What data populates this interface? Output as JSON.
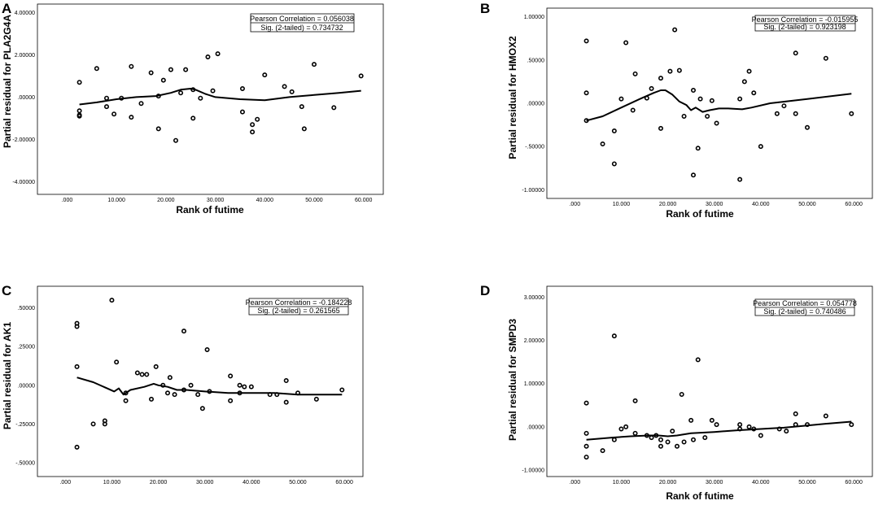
{
  "figure": {
    "x_ticks": [
      ".000",
      "10.000",
      "20.000",
      "30.000",
      "40.000",
      "50.000",
      "60.000"
    ]
  },
  "chart_data": [
    {
      "type": "scatter",
      "panel": "A",
      "xlabel": "Rank of futime",
      "ylabel": "Partial residual for PLA2G4A",
      "xlim": [
        -6,
        64
      ],
      "ylim": [
        -4.6,
        4.4
      ],
      "y_ticks": [
        4,
        2,
        0,
        -2,
        -4
      ],
      "y_tick_labels": [
        "4.00000",
        "2.00000",
        ".00000",
        "-2.00000",
        "-4.00000"
      ],
      "stats": [
        "Pearson Correlation = 0.056038",
        "Sig. (2-tailed) = 0.734732"
      ],
      "points": [
        [
          2.5,
          0.7
        ],
        [
          2.5,
          -0.65
        ],
        [
          2.5,
          -0.85
        ],
        [
          2.5,
          -0.9
        ],
        [
          6,
          1.35
        ],
        [
          8,
          -0.05
        ],
        [
          8,
          -0.45
        ],
        [
          9.5,
          -0.8
        ],
        [
          11,
          -0.05
        ],
        [
          13,
          1.45
        ],
        [
          13,
          -0.95
        ],
        [
          15,
          -0.3
        ],
        [
          17,
          1.15
        ],
        [
          18.5,
          0.05
        ],
        [
          18.5,
          -1.5
        ],
        [
          19.5,
          0.8
        ],
        [
          21,
          1.3
        ],
        [
          22,
          -2.05
        ],
        [
          23,
          0.2
        ],
        [
          24,
          1.3
        ],
        [
          25.5,
          0.35
        ],
        [
          25.5,
          -1.0
        ],
        [
          27,
          -0.05
        ],
        [
          28.5,
          1.9
        ],
        [
          29.5,
          0.3
        ],
        [
          30.5,
          2.05
        ],
        [
          35.5,
          0.4
        ],
        [
          35.5,
          -0.7
        ],
        [
          37.5,
          -1.3
        ],
        [
          37.5,
          -1.65
        ],
        [
          38.5,
          -1.05
        ],
        [
          40,
          1.05
        ],
        [
          44,
          0.5
        ],
        [
          45.5,
          0.25
        ],
        [
          47.5,
          -0.45
        ],
        [
          48,
          -1.5
        ],
        [
          50,
          1.55
        ],
        [
          54,
          -0.5
        ],
        [
          59.5,
          1.0
        ]
      ],
      "fit": [
        [
          2.5,
          -0.35
        ],
        [
          6,
          -0.25
        ],
        [
          10,
          -0.1
        ],
        [
          14,
          0.0
        ],
        [
          18,
          0.05
        ],
        [
          21,
          0.2
        ],
        [
          23,
          0.35
        ],
        [
          25,
          0.4
        ],
        [
          26,
          0.35
        ],
        [
          28,
          0.15
        ],
        [
          30,
          0.0
        ],
        [
          35,
          -0.1
        ],
        [
          40,
          -0.15
        ],
        [
          45,
          0.0
        ],
        [
          50,
          0.1
        ],
        [
          55,
          0.2
        ],
        [
          59.5,
          0.3
        ]
      ]
    },
    {
      "type": "scatter",
      "panel": "B",
      "xlabel": "Rank of futime",
      "ylabel": "Partial residual for HMOX2",
      "xlim": [
        -6,
        64
      ],
      "ylim": [
        -1.1,
        1.1
      ],
      "y_ticks": [
        1,
        0.5,
        0,
        -0.5,
        -1
      ],
      "y_tick_labels": [
        "1.00000",
        ".50000",
        ".00000",
        "-.50000",
        "-1.00000"
      ],
      "stats": [
        "Pearson Correlation = -0.015955",
        "Sig. (2-tailed) = 0.923198"
      ],
      "points": [
        [
          2.5,
          0.72
        ],
        [
          2.5,
          0.12
        ],
        [
          2.5,
          -0.2
        ],
        [
          6,
          -0.47
        ],
        [
          8.5,
          -0.7
        ],
        [
          8.5,
          -0.32
        ],
        [
          10,
          0.05
        ],
        [
          11,
          0.7
        ],
        [
          12.5,
          -0.08
        ],
        [
          13,
          0.34
        ],
        [
          15.5,
          0.06
        ],
        [
          16.5,
          0.17
        ],
        [
          18.5,
          0.29
        ],
        [
          18.5,
          -0.29
        ],
        [
          20.5,
          0.37
        ],
        [
          21.5,
          0.85
        ],
        [
          22.5,
          0.38
        ],
        [
          23.5,
          -0.15
        ],
        [
          25.5,
          0.15
        ],
        [
          25.5,
          -0.83
        ],
        [
          26.5,
          -0.52
        ],
        [
          27,
          0.05
        ],
        [
          28.5,
          -0.15
        ],
        [
          29.5,
          0.03
        ],
        [
          30.5,
          -0.23
        ],
        [
          35.5,
          0.05
        ],
        [
          35.5,
          -0.88
        ],
        [
          36.5,
          0.25
        ],
        [
          37.5,
          0.37
        ],
        [
          38.5,
          0.12
        ],
        [
          40,
          -0.5
        ],
        [
          43.5,
          -0.12
        ],
        [
          45,
          -0.03
        ],
        [
          47.5,
          0.58
        ],
        [
          47.5,
          -0.12
        ],
        [
          50,
          -0.28
        ],
        [
          54,
          0.52
        ],
        [
          59.5,
          -0.12
        ]
      ],
      "fit": [
        [
          2.5,
          -0.2
        ],
        [
          6,
          -0.15
        ],
        [
          10,
          -0.05
        ],
        [
          14,
          0.05
        ],
        [
          17,
          0.12
        ],
        [
          18.5,
          0.15
        ],
        [
          19.5,
          0.15
        ],
        [
          21,
          0.1
        ],
        [
          22.5,
          0.02
        ],
        [
          24,
          -0.02
        ],
        [
          25,
          -0.08
        ],
        [
          26,
          -0.05
        ],
        [
          27.5,
          -0.1
        ],
        [
          29,
          -0.08
        ],
        [
          31,
          -0.06
        ],
        [
          33,
          -0.06
        ],
        [
          36,
          -0.07
        ],
        [
          38,
          -0.05
        ],
        [
          42,
          0.0
        ],
        [
          50,
          0.05
        ],
        [
          59.5,
          0.11
        ]
      ]
    },
    {
      "type": "scatter",
      "panel": "C",
      "xlabel": "",
      "ylabel": "Partial residual for AK1",
      "xlim": [
        -6,
        64
      ],
      "ylim": [
        -0.59,
        0.64
      ],
      "y_ticks": [
        0.5,
        0.25,
        0,
        -0.25,
        -0.5
      ],
      "y_tick_labels": [
        ".50000",
        ".25000",
        ".00000",
        "-.25000",
        "-.50000"
      ],
      "stats": [
        "Pearson Correlation = -0.184228",
        "Sig. (2-tailed) = 0.261565"
      ],
      "points": [
        [
          2.5,
          0.4
        ],
        [
          2.5,
          0.38
        ],
        [
          2.5,
          0.12
        ],
        [
          2.5,
          -0.4
        ],
        [
          6,
          -0.25
        ],
        [
          8.5,
          -0.23
        ],
        [
          8.5,
          -0.25
        ],
        [
          10,
          0.55
        ],
        [
          11,
          0.15
        ],
        [
          13,
          -0.1
        ],
        [
          13,
          -0.05
        ],
        [
          15.5,
          0.08
        ],
        [
          16.5,
          0.07
        ],
        [
          17.5,
          0.07
        ],
        [
          18.5,
          -0.09
        ],
        [
          19.5,
          0.12
        ],
        [
          21,
          0.0
        ],
        [
          22,
          -0.05
        ],
        [
          22.5,
          0.05
        ],
        [
          23.5,
          -0.06
        ],
        [
          25.5,
          0.35
        ],
        [
          25.5,
          -0.03
        ],
        [
          27,
          0.0
        ],
        [
          28.5,
          -0.06
        ],
        [
          29.5,
          -0.15
        ],
        [
          30.5,
          0.23
        ],
        [
          31,
          -0.04
        ],
        [
          35.5,
          0.06
        ],
        [
          35.5,
          -0.1
        ],
        [
          37.5,
          -0.05
        ],
        [
          37.5,
          0.0
        ],
        [
          38.5,
          -0.01
        ],
        [
          40,
          -0.01
        ],
        [
          44,
          -0.06
        ],
        [
          45.5,
          -0.06
        ],
        [
          47.5,
          0.03
        ],
        [
          47.5,
          -0.11
        ],
        [
          50,
          -0.05
        ],
        [
          54,
          -0.09
        ],
        [
          59.5,
          -0.03
        ]
      ],
      "fit": [
        [
          2.5,
          0.05
        ],
        [
          6,
          0.02
        ],
        [
          9,
          -0.02
        ],
        [
          10.5,
          -0.04
        ],
        [
          11.5,
          -0.02
        ],
        [
          12.5,
          -0.06
        ],
        [
          14,
          -0.03
        ],
        [
          17,
          -0.01
        ],
        [
          19,
          0.01
        ],
        [
          20,
          0.0
        ],
        [
          22,
          -0.01
        ],
        [
          24,
          -0.03
        ],
        [
          26,
          -0.03
        ],
        [
          30,
          -0.04
        ],
        [
          35,
          -0.05
        ],
        [
          40,
          -0.05
        ],
        [
          45,
          -0.05
        ],
        [
          50,
          -0.06
        ],
        [
          59.5,
          -0.06
        ]
      ]
    },
    {
      "type": "scatter",
      "panel": "D",
      "xlabel": "Rank of futime",
      "ylabel": "Partial residual for SMPD3",
      "xlim": [
        -6,
        64
      ],
      "ylim": [
        -1.15,
        3.25
      ],
      "y_ticks": [
        3,
        2,
        1,
        0,
        -1
      ],
      "y_tick_labels": [
        "3.00000",
        "2.00000",
        "1.00000",
        ".00000",
        "-1.00000"
      ],
      "stats": [
        "Pearson Correlation = 0.054778",
        "Sig. (2-tailed) = 0.740486"
      ],
      "points": [
        [
          2.5,
          0.55
        ],
        [
          2.5,
          -0.15
        ],
        [
          2.5,
          -0.45
        ],
        [
          2.5,
          -0.7
        ],
        [
          6,
          -0.55
        ],
        [
          8.5,
          2.1
        ],
        [
          8.5,
          -0.3
        ],
        [
          10,
          -0.05
        ],
        [
          11,
          0.0
        ],
        [
          13,
          0.6
        ],
        [
          13,
          -0.15
        ],
        [
          15.5,
          -0.2
        ],
        [
          16.5,
          -0.25
        ],
        [
          17.5,
          -0.2
        ],
        [
          18.5,
          -0.3
        ],
        [
          18.5,
          -0.45
        ],
        [
          20,
          -0.35
        ],
        [
          21,
          -0.1
        ],
        [
          22,
          -0.45
        ],
        [
          23,
          0.75
        ],
        [
          23.5,
          -0.35
        ],
        [
          25,
          0.15
        ],
        [
          25.5,
          -0.3
        ],
        [
          26.5,
          1.55
        ],
        [
          28,
          -0.25
        ],
        [
          29.5,
          0.15
        ],
        [
          30.5,
          0.05
        ],
        [
          35.5,
          0.05
        ],
        [
          35.5,
          -0.05
        ],
        [
          37.5,
          0.0
        ],
        [
          38.5,
          -0.05
        ],
        [
          40,
          -0.2
        ],
        [
          44,
          -0.05
        ],
        [
          45.5,
          -0.1
        ],
        [
          47.5,
          0.3
        ],
        [
          47.5,
          0.05
        ],
        [
          50,
          0.05
        ],
        [
          54,
          0.25
        ],
        [
          59.5,
          0.05
        ]
      ],
      "fit": [
        [
          2.5,
          -0.3
        ],
        [
          8,
          -0.25
        ],
        [
          12,
          -0.22
        ],
        [
          16,
          -0.2
        ],
        [
          18,
          -0.2
        ],
        [
          20,
          -0.22
        ],
        [
          22,
          -0.2
        ],
        [
          25,
          -0.15
        ],
        [
          30,
          -0.12
        ],
        [
          35,
          -0.08
        ],
        [
          40,
          -0.05
        ],
        [
          45,
          -0.02
        ],
        [
          50,
          0.03
        ],
        [
          55,
          0.08
        ],
        [
          59.5,
          0.12
        ]
      ]
    }
  ]
}
